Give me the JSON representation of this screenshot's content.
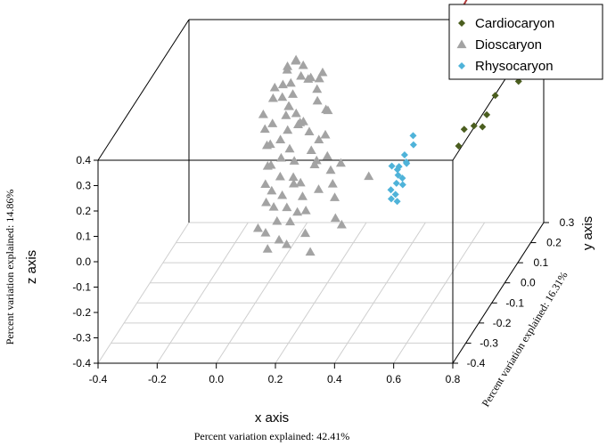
{
  "chart_data": {
    "type": "scatter",
    "projection": "3d",
    "xlabel": "x axis",
    "ylabel": "y axis",
    "zlabel": "z axis",
    "x_subtitle": "Percent variation explained: 42.41%",
    "y_subtitle": "Percent variation explained: 16.31%",
    "z_subtitle": "Percent variation explained: 14.86%",
    "xlim": [
      -0.4,
      0.8
    ],
    "ylim": [
      -0.4,
      0.3
    ],
    "zlim": [
      -0.4,
      0.4
    ],
    "x_ticks": [
      "-0.4",
      "-0.2",
      "0.0",
      "0.2",
      "0.4",
      "0.6",
      "0.8"
    ],
    "y_ticks": [
      "-0.4",
      "-0.3",
      "-0.2",
      "-0.1",
      "0.0",
      "0.1",
      "0.2",
      "0.3"
    ],
    "z_ticks": [
      "-0.4",
      "-0.3",
      "-0.2",
      "-0.1",
      "0.0",
      "0.1",
      "0.2",
      "0.3",
      "0.4"
    ],
    "grid": true,
    "box": true,
    "legend": "top-right",
    "series": [
      {
        "name": "Cardiocaryon",
        "marker": "diamond",
        "color": "#4b5e1f",
        "points": [
          [
            0.74,
            0.26,
            0.33
          ],
          [
            0.76,
            0.27,
            0.3
          ],
          [
            0.78,
            0.25,
            0.28
          ],
          [
            0.72,
            0.24,
            0.31
          ],
          [
            0.79,
            0.28,
            0.32
          ],
          [
            0.73,
            0.27,
            0.27
          ],
          [
            0.75,
            0.22,
            0.22
          ],
          [
            0.7,
            0.23,
            0.25
          ],
          [
            0.68,
            0.2,
            0.18
          ],
          [
            0.66,
            0.18,
            0.12
          ],
          [
            0.63,
            0.15,
            0.1
          ],
          [
            0.65,
            0.17,
            0.08
          ],
          [
            0.61,
            0.12,
            0.11
          ],
          [
            0.6,
            0.1,
            0.06
          ],
          [
            0.77,
            0.29,
            0.35
          ],
          [
            0.8,
            0.26,
            0.36
          ]
        ]
      },
      {
        "name": "Dioscaryon",
        "marker": "triangle",
        "color": "#a3a3a3",
        "points": [
          [
            0.05,
            0.1,
            0.4
          ],
          [
            0.07,
            0.11,
            0.37
          ],
          [
            0.03,
            0.08,
            0.39
          ],
          [
            0.02,
            0.1,
            0.36
          ],
          [
            0.08,
            0.07,
            0.36
          ],
          [
            0.05,
            0.06,
            0.34
          ],
          [
            0.0,
            0.05,
            0.33
          ],
          [
            0.1,
            0.1,
            0.33
          ],
          [
            0.03,
            0.04,
            0.3
          ],
          [
            0.12,
            0.12,
            0.31
          ],
          [
            0.06,
            0.02,
            0.28
          ],
          [
            -0.01,
            0.06,
            0.28
          ],
          [
            0.09,
            0.01,
            0.26
          ],
          [
            0.14,
            0.06,
            0.27
          ],
          [
            0.04,
            0.07,
            0.24
          ],
          [
            -0.03,
            0.03,
            0.24
          ],
          [
            0.11,
            0.02,
            0.22
          ],
          [
            0.07,
            -0.01,
            0.21
          ],
          [
            0.01,
            0.01,
            0.22
          ],
          [
            0.16,
            0.08,
            0.22
          ],
          [
            0.05,
            -0.02,
            0.18
          ],
          [
            0.09,
            -0.04,
            0.16
          ],
          [
            0.13,
            0.02,
            0.18
          ],
          [
            0.02,
            -0.03,
            0.17
          ],
          [
            -0.02,
            0.02,
            0.19
          ],
          [
            0.18,
            0.03,
            0.16
          ],
          [
            0.07,
            -0.06,
            0.14
          ],
          [
            0.11,
            -0.05,
            0.12
          ],
          [
            0.04,
            -0.07,
            0.12
          ],
          [
            0.15,
            -0.01,
            0.13
          ],
          [
            0.08,
            -0.09,
            0.09
          ],
          [
            0.12,
            -0.08,
            0.08
          ],
          [
            0.02,
            -0.05,
            0.1
          ],
          [
            0.17,
            -0.03,
            0.09
          ],
          [
            0.2,
            0.0,
            0.1
          ],
          [
            0.06,
            -0.11,
            0.05
          ],
          [
            0.1,
            -0.12,
            0.04
          ],
          [
            0.14,
            -0.07,
            0.05
          ],
          [
            0.03,
            -0.09,
            0.06
          ],
          [
            0.22,
            -0.02,
            0.06
          ],
          [
            0.08,
            -0.14,
            0.01
          ],
          [
            0.12,
            -0.13,
            0.0
          ],
          [
            0.16,
            -0.1,
            0.02
          ],
          [
            0.05,
            -0.13,
            0.02
          ],
          [
            0.1,
            -0.16,
            -0.03
          ],
          [
            0.14,
            -0.15,
            -0.04
          ],
          [
            0.07,
            -0.18,
            -0.06
          ],
          [
            0.18,
            -0.12,
            -0.02
          ],
          [
            0.12,
            -0.19,
            -0.08
          ],
          [
            0.04,
            -0.17,
            -0.05
          ],
          [
            0.09,
            -0.21,
            -0.1
          ],
          [
            0.15,
            -0.2,
            -0.09
          ],
          [
            0.2,
            -0.17,
            -0.07
          ],
          [
            0.24,
            -0.05,
            0.03
          ],
          [
            0.26,
            -0.08,
            0.0
          ],
          [
            0.28,
            -0.12,
            -0.05
          ],
          [
            0.31,
            -0.14,
            -0.06
          ],
          [
            0.34,
            0.0,
            0.02
          ],
          [
            0.23,
            -0.2,
            -0.12
          ],
          [
            0.06,
            0.0,
            0.26
          ],
          [
            0.13,
            0.08,
            0.3
          ],
          [
            0.01,
            0.09,
            0.31
          ],
          [
            0.18,
            0.05,
            0.24
          ],
          [
            0.09,
            0.04,
            0.2
          ],
          [
            0.19,
            -0.06,
            0.13
          ],
          [
            0.0,
            -0.01,
            0.15
          ],
          [
            0.11,
            -0.02,
            0.24
          ],
          [
            0.07,
            0.03,
            0.32
          ],
          [
            0.14,
            0.1,
            0.35
          ],
          [
            0.04,
            0.12,
            0.38
          ],
          [
            0.16,
            -0.14,
            -0.01
          ],
          [
            0.21,
            -0.09,
            0.04
          ],
          [
            0.1,
            0.08,
            0.34
          ],
          [
            0.25,
            -0.01,
            0.08
          ],
          [
            0.18,
            -0.02,
            0.18
          ],
          [
            0.13,
            -0.1,
            0.07
          ],
          [
            0.52,
            0.26,
            0.42
          ]
        ]
      },
      {
        "name": "Rhysocaryon",
        "marker": "diamond",
        "color": "#4fb3d9",
        "points": [
          [
            0.47,
            -0.02,
            0.12
          ],
          [
            0.48,
            -0.03,
            0.1
          ],
          [
            0.46,
            -0.04,
            0.09
          ],
          [
            0.49,
            -0.05,
            0.11
          ],
          [
            0.45,
            -0.03,
            0.07
          ],
          [
            0.48,
            -0.06,
            0.06
          ],
          [
            0.47,
            -0.07,
            0.08
          ],
          [
            0.46,
            -0.06,
            0.04
          ],
          [
            0.49,
            -0.08,
            0.05
          ],
          [
            0.45,
            -0.08,
            0.03
          ],
          [
            0.47,
            -0.09,
            0.02
          ],
          [
            0.48,
            -0.1,
            0.0
          ],
          [
            0.5,
            -0.02,
            0.16
          ],
          [
            0.49,
            0.0,
            0.18
          ],
          [
            0.44,
            -0.05,
            0.1
          ],
          [
            0.46,
            -0.1,
            0.01
          ]
        ]
      }
    ],
    "annotations": [
      {
        "type": "arrow",
        "color": "#b03a3a",
        "points_to": "Dioscaryon outlier"
      }
    ]
  }
}
